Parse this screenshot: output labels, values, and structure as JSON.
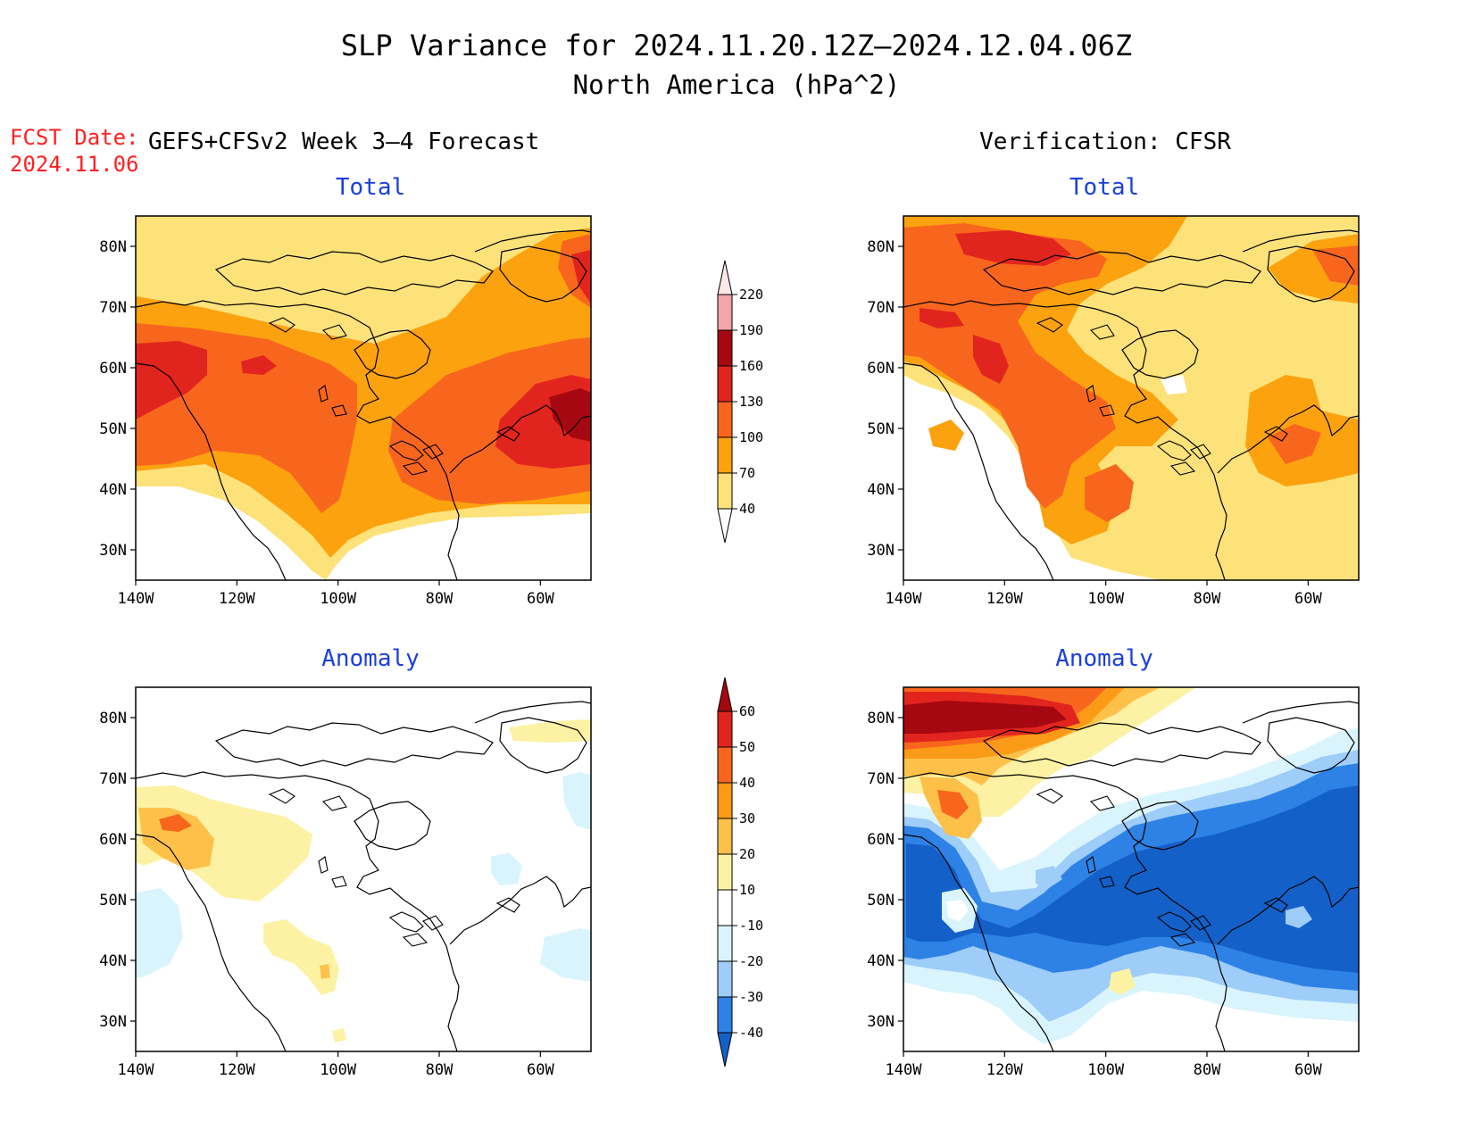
{
  "title": {
    "line1": "SLP Variance for 2024.11.20.12Z–2024.12.04.06Z",
    "line2": "North America (hPa^2)"
  },
  "fcst": {
    "label": "FCST Date:",
    "date": "2024.11.06"
  },
  "left_header": "GEFS+CFSv2 Week 3–4 Forecast",
  "right_header": "Verification: CFSR",
  "panel_titles": {
    "fcst_total": "Total",
    "fcst_anomaly": "Anomaly",
    "ver_total": "Total",
    "ver_anomaly": "Anomaly"
  },
  "axes": {
    "lat_labels": [
      "80N",
      "70N",
      "60N",
      "50N",
      "40N",
      "30N"
    ],
    "lat_values": [
      80,
      70,
      60,
      50,
      40,
      30
    ],
    "lon_labels": [
      "140W",
      "120W",
      "100W",
      "80W",
      "60W"
    ],
    "lon_values": [
      -140,
      -120,
      -100,
      -80,
      -60
    ],
    "lat_range": [
      25,
      85
    ],
    "lon_range": [
      -140,
      -50
    ]
  },
  "colorbars": {
    "total": {
      "labels": [
        "40",
        "70",
        "100",
        "130",
        "160",
        "190",
        "220"
      ],
      "colors": [
        "#fde27a",
        "#fca20f",
        "#f8661d",
        "#e2241e",
        "#a50810",
        "#f3a5a7",
        "#fde8e8"
      ]
    },
    "anomaly": {
      "labels": [
        "-40",
        "-30",
        "-20",
        "-10",
        "10",
        "20",
        "30",
        "40",
        "50",
        "60"
      ],
      "colors": [
        "#1460c9",
        "#2e82e5",
        "#9dcdf8",
        "#d9f4fd",
        "#ffffff",
        "#fdf1a3",
        "#fdc14a",
        "#fb9a16",
        "#f8661d",
        "#e2241e",
        "#a50810"
      ]
    }
  },
  "colors": {
    "title_text": "#000000",
    "panel_title": "#1a3fe0",
    "fcst_date": "#ff2020",
    "coast": "#000000"
  }
}
